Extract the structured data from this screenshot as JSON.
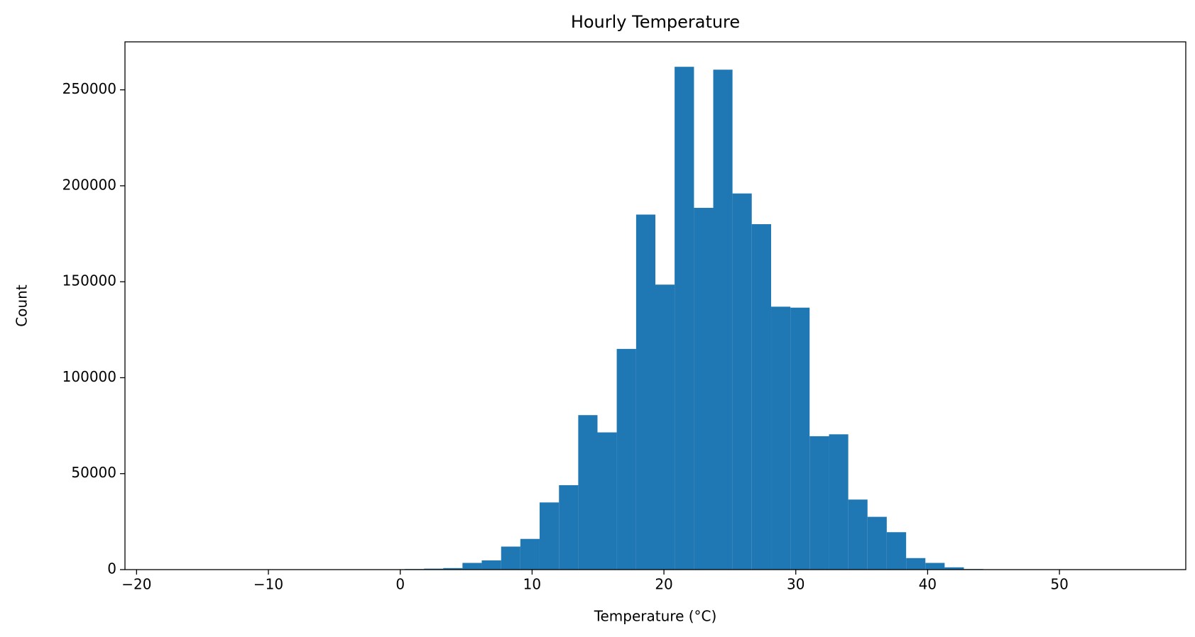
{
  "chart_data": {
    "type": "histogram",
    "title": "Hourly Temperature",
    "x_label": "Temperature (°C)",
    "y_label": "Count",
    "color": "#1f77b4",
    "bins": [
      -17.22,
      -15.76,
      -14.29,
      -12.83,
      -11.37,
      -9.91,
      -8.44,
      -6.98,
      -5.52,
      -4.05,
      -2.59,
      -1.13,
      0.33,
      1.8,
      3.26,
      4.72,
      6.18,
      7.65,
      9.11,
      10.57,
      12.04,
      13.5,
      14.96,
      16.42,
      17.89,
      19.35,
      20.81,
      22.28,
      23.74,
      25.2,
      26.66,
      28.13,
      29.59,
      31.05,
      32.52,
      33.98,
      35.44,
      36.9,
      38.37,
      39.83,
      41.29,
      42.75,
      44.22,
      45.68,
      47.14,
      48.61,
      50.07,
      51.53,
      52.99,
      54.46,
      55.92
    ],
    "values": [
      10,
      0,
      0,
      0,
      0,
      10,
      0,
      20,
      30,
      50,
      80,
      150,
      300,
      500,
      800,
      3500,
      4800,
      12000,
      16000,
      35000,
      44000,
      80500,
      71500,
      115000,
      185000,
      148500,
      262000,
      188500,
      260500,
      196000,
      180000,
      137000,
      136500,
      69500,
      70500,
      36500,
      27500,
      19500,
      6000,
      3500,
      1200,
      300,
      50,
      20,
      10,
      0,
      0,
      0,
      0,
      10
    ],
    "xlim": [
      -20.88,
      59.58
    ],
    "ylim": [
      0,
      275000
    ],
    "xticks": [
      {
        "value": -20,
        "label": "−20"
      },
      {
        "value": -10,
        "label": "−10"
      },
      0,
      10,
      20,
      30,
      40,
      50
    ],
    "yticks": [
      0,
      50000,
      100000,
      150000,
      200000,
      250000
    ]
  }
}
